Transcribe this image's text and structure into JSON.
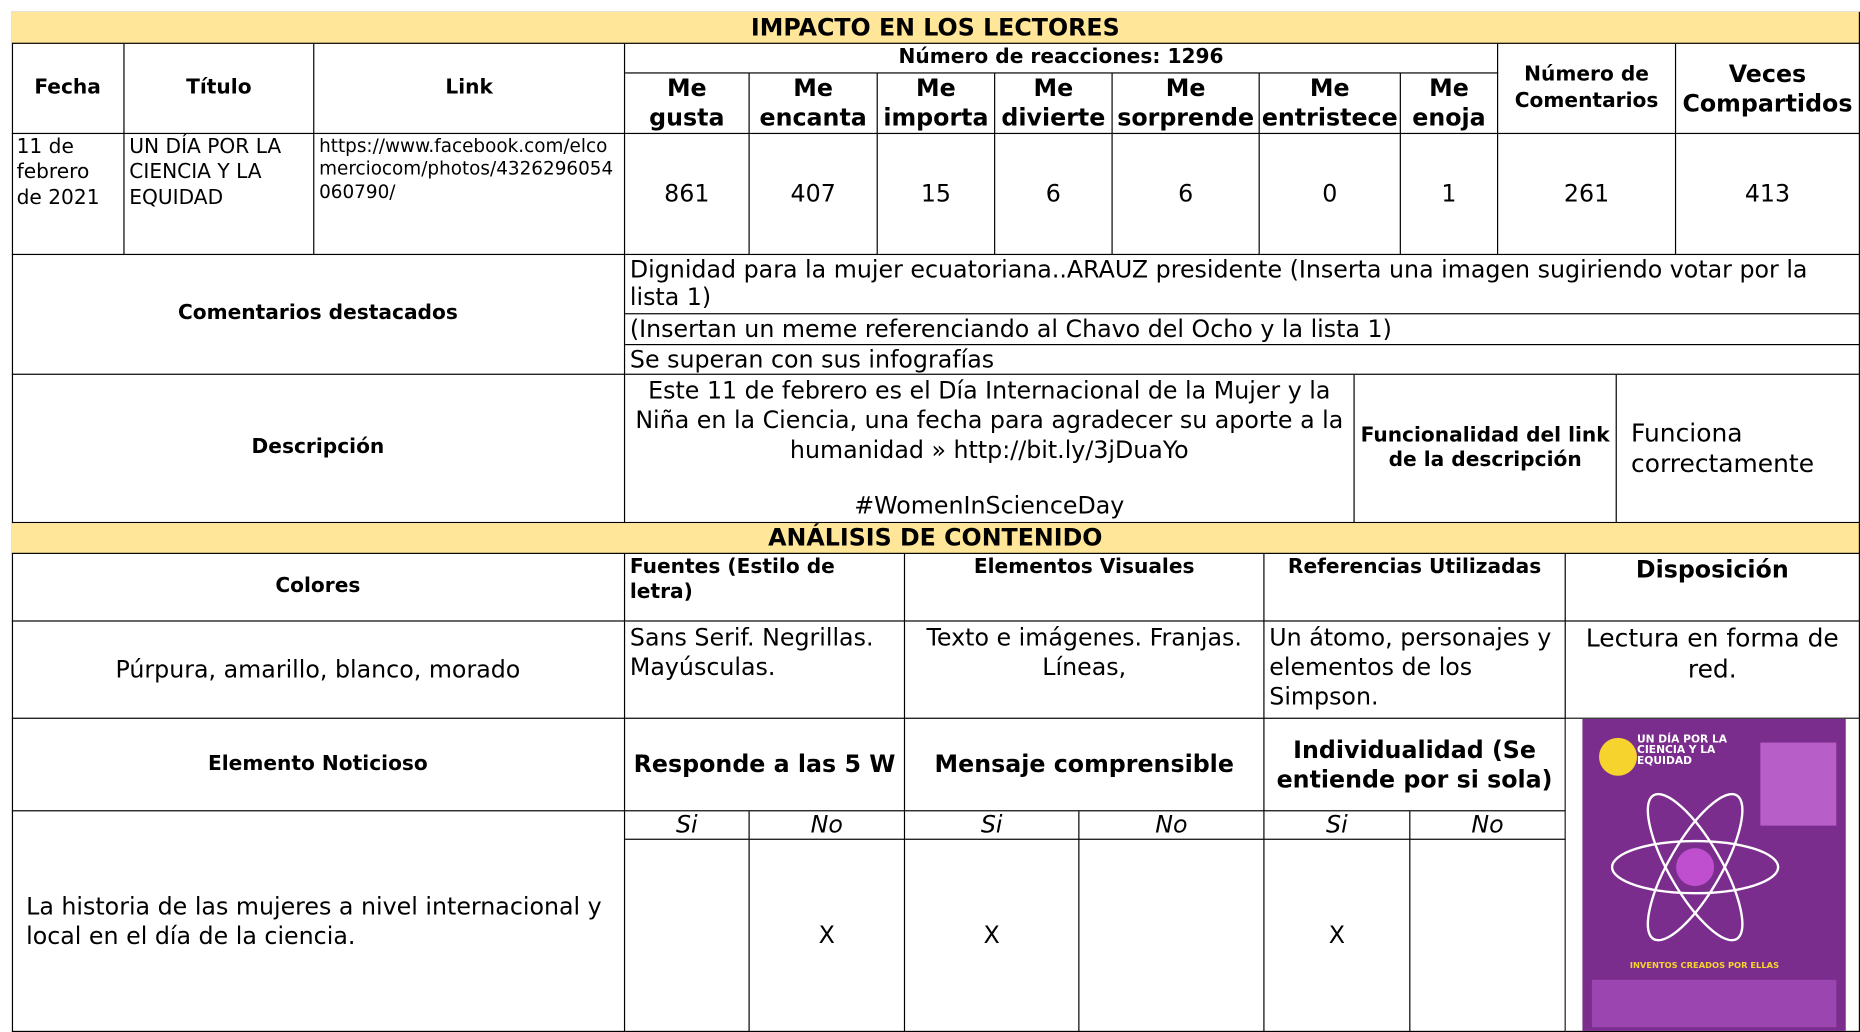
{
  "impacto": {
    "title": "IMPACTO EN LOS LECTORES",
    "headers": {
      "fecha": "Fecha",
      "titulo": "Título",
      "link": "Link",
      "reacciones": "Número de reacciones: 1296",
      "reaction_types": [
        "Me gusta",
        "Me encanta",
        "Me importa",
        "Me divierte",
        "Me sorprende",
        "Me entristece",
        "Me enoja"
      ],
      "comentarios": "Número de Comentarios",
      "compartidos": "Veces Compartidos"
    },
    "row": {
      "fecha": "11 de febrero de 2021",
      "titulo": "UN DÍA POR LA CIENCIA Y LA EQUIDAD",
      "link": "https://www.facebook.com/elcomerciocom/photos/4326296054060790/",
      "reactions": [
        861,
        407,
        15,
        6,
        6,
        0,
        1
      ],
      "comentarios": 261,
      "compartidos": 413
    },
    "comentarios_destacados": {
      "label": "Comentarios destacados",
      "items": [
        "Dignidad para la mujer ecuatoriana..ARAUZ presidente (Inserta una imagen sugiriendo votar por la lista 1)",
        "(Insertan un meme referenciando al Chavo del Ocho y la lista 1)",
        "Se superan con sus infografías"
      ]
    },
    "descripcion": {
      "label": "Descripción",
      "text": "Este 11 de febrero es el Día Internacional de la Mujer y la Niña en la Ciencia, una fecha para agradecer su aporte a la humanidad » http://bit.ly/3jDuaYo",
      "hashtag": "#WomenInScienceDay",
      "funcionalidad_label": "Funcionalidad del link de la descripción",
      "funcionalidad": "Funciona correctamente"
    }
  },
  "analisis": {
    "title": "ANÁLISIS DE CONTENIDO",
    "headers": {
      "colores": "Colores",
      "fuentes": "Fuentes (Estilo de letra)",
      "elementos": "Elementos Visuales",
      "referencias": "Referencias Utilizadas",
      "disposicion": "Disposición"
    },
    "values": {
      "colores": "Púrpura, amarillo, blanco, morado",
      "fuentes": "Sans Serif. Negrillas. Mayúsculas.",
      "elementos": "Texto e imágenes. Franjas. Líneas,",
      "referencias": "Un átomo, personajes y elementos de los Simpson.",
      "disposicion": "Lectura en forma de red."
    },
    "noticioso": {
      "label": "Elemento Noticioso",
      "criteria": [
        "Responde a las 5 W",
        "Mensaje comprensible",
        "Individualidad (Se entiende por si sola)"
      ],
      "si": "Si",
      "no": "No",
      "answers": [
        {
          "no": "X"
        },
        {
          "si": "X"
        },
        {
          "si": "X"
        }
      ],
      "texto": "La historia de las mujeres a nivel internacional y local en el día de la ciencia."
    },
    "imagen": {
      "title": "UN DÍA POR LA CIENCIA Y LA EQUIDAD",
      "subtitle": "INVENTOS CREADOS POR ELLAS"
    }
  }
}
